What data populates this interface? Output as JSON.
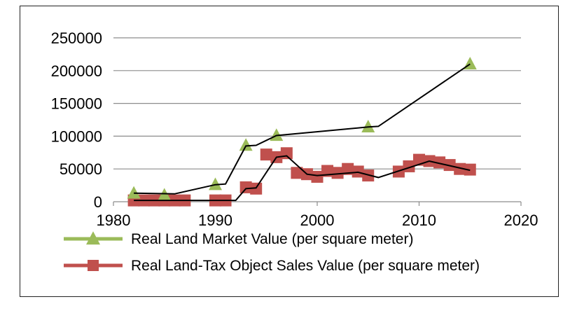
{
  "chart_data": {
    "type": "line",
    "title": "",
    "xlabel": "",
    "ylabel": "",
    "xlim": [
      1980,
      2020
    ],
    "ylim": [
      0,
      250000
    ],
    "x_ticks": [
      "1980",
      "1990",
      "2000",
      "2010",
      "2020"
    ],
    "y_ticks": [
      "0",
      "50000",
      "100000",
      "150000",
      "200000",
      "250000"
    ],
    "grid": "horizontal",
    "legend_position": "bottom",
    "series": [
      {
        "name": "Real Land Market Value (per square meter)",
        "color": "#9bbb59",
        "marker": "triangle",
        "points": [
          {
            "x": 1982,
            "y": 13000
          },
          {
            "x": 1985,
            "y": 10000
          },
          {
            "x": 1990,
            "y": 26000
          },
          {
            "x": 1993,
            "y": 86000
          },
          {
            "x": 1996,
            "y": 101000
          },
          {
            "x": 2005,
            "y": 114000
          },
          {
            "x": 2015,
            "y": 210000
          }
        ]
      },
      {
        "name": "Real Land-Tax Object Sales Value (per square meter)",
        "color": "#c0504d",
        "marker": "square",
        "points": [
          {
            "x": 1982,
            "y": 2000
          },
          {
            "x": 1983,
            "y": 2000
          },
          {
            "x": 1984,
            "y": 2000
          },
          {
            "x": 1985,
            "y": 2000
          },
          {
            "x": 1986,
            "y": 2000
          },
          {
            "x": 1987,
            "y": 2000
          },
          {
            "x": 1990,
            "y": 2000
          },
          {
            "x": 1991,
            "y": 2000
          },
          {
            "x": 1993,
            "y": 22000
          },
          {
            "x": 1994,
            "y": 20000
          },
          {
            "x": 1995,
            "y": 72000
          },
          {
            "x": 1996,
            "y": 68000
          },
          {
            "x": 1997,
            "y": 74000
          },
          {
            "x": 1998,
            "y": 44000
          },
          {
            "x": 1999,
            "y": 42000
          },
          {
            "x": 2000,
            "y": 38000
          },
          {
            "x": 2001,
            "y": 47000
          },
          {
            "x": 2002,
            "y": 44000
          },
          {
            "x": 2003,
            "y": 50000
          },
          {
            "x": 2004,
            "y": 46000
          },
          {
            "x": 2005,
            "y": 40000
          },
          {
            "x": 2008,
            "y": 46000
          },
          {
            "x": 2009,
            "y": 54000
          },
          {
            "x": 2010,
            "y": 64000
          },
          {
            "x": 2011,
            "y": 62000
          },
          {
            "x": 2012,
            "y": 60000
          },
          {
            "x": 2013,
            "y": 56000
          },
          {
            "x": 2014,
            "y": 50000
          },
          {
            "x": 2015,
            "y": 49000
          }
        ]
      }
    ],
    "trendlines": [
      {
        "series": "Real Land Market Value (per square meter)",
        "color": "#000000",
        "points": [
          {
            "x": 1982,
            "y": 13000
          },
          {
            "x": 1986,
            "y": 12000
          },
          {
            "x": 1990,
            "y": 26000
          },
          {
            "x": 1991,
            "y": 27000
          },
          {
            "x": 1993,
            "y": 85000
          },
          {
            "x": 1994,
            "y": 86000
          },
          {
            "x": 1996,
            "y": 101000
          },
          {
            "x": 2005,
            "y": 114000
          },
          {
            "x": 2006,
            "y": 115000
          },
          {
            "x": 2015,
            "y": 210000
          }
        ]
      },
      {
        "series": "Real Land-Tax Object Sales Value (per square meter)",
        "color": "#000000",
        "points": [
          {
            "x": 1982,
            "y": 2000
          },
          {
            "x": 1991,
            "y": 2000
          },
          {
            "x": 1992,
            "y": 2000
          },
          {
            "x": 1993,
            "y": 20000
          },
          {
            "x": 1994,
            "y": 21000
          },
          {
            "x": 1996,
            "y": 68000
          },
          {
            "x": 1997,
            "y": 70000
          },
          {
            "x": 1999,
            "y": 42000
          },
          {
            "x": 2000,
            "y": 40000
          },
          {
            "x": 2004,
            "y": 45000
          },
          {
            "x": 2006,
            "y": 37000
          },
          {
            "x": 2011,
            "y": 62000
          },
          {
            "x": 2015,
            "y": 48000
          }
        ]
      }
    ]
  }
}
